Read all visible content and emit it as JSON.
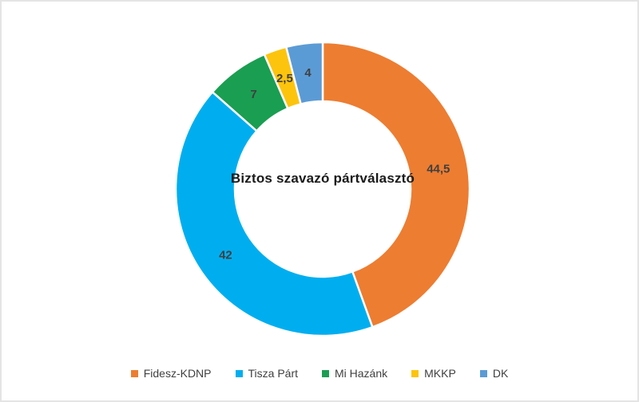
{
  "page": {
    "background": "#ffffff",
    "border_color": "#e4e4e4"
  },
  "chart_data": {
    "type": "pie",
    "subtype": "donut",
    "title": "Biztos szavazó pártválasztó",
    "categories": [
      "Fidesz-KDNP",
      "Tisza Párt",
      "Mi Hazánk",
      "MKKP",
      "DK"
    ],
    "values": [
      44.5,
      42,
      7,
      2.5,
      4
    ],
    "value_labels": [
      "44,5",
      "42",
      "7",
      "2,5",
      "4"
    ],
    "colors": [
      "#ED7D31",
      "#00AEEF",
      "#1A9E52",
      "#FDC40D",
      "#5B9BD5"
    ],
    "label_color": "#404040",
    "total": 100,
    "start_angle_deg": 0,
    "direction": "clockwise",
    "donut_hole_ratio": 0.6,
    "legend_position": "bottom",
    "segment_border_color": "#ffffff"
  }
}
